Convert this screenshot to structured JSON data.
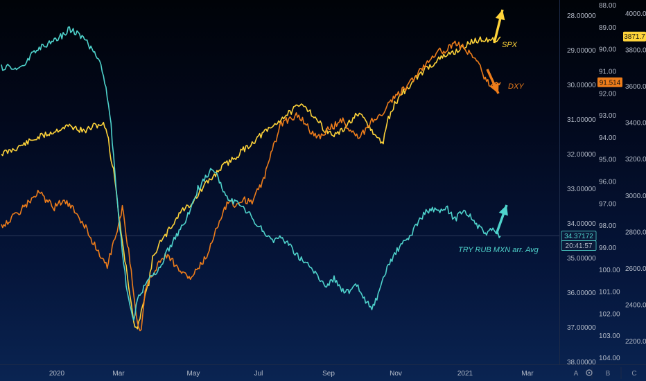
{
  "chart_data": {
    "type": "line",
    "title": "",
    "time_axis": {
      "ticks": [
        "2020",
        "Mar",
        "May",
        "Jul",
        "Sep",
        "Nov",
        "2021",
        "Mar"
      ]
    },
    "scale_left": {
      "inverted": true,
      "range": [
        27.6,
        38.1
      ],
      "ticks": [
        "28.00000",
        "29.00000",
        "30.00000",
        "31.00000",
        "32.00000",
        "33.00000",
        "34.00000",
        "35.00000",
        "36.00000",
        "37.00000",
        "38.00000"
      ],
      "tick_values": [
        28,
        29,
        30,
        31,
        32,
        33,
        34,
        35,
        36,
        37,
        38
      ]
    },
    "scale_mid": {
      "inverted": true,
      "range": [
        87.9,
        104.2
      ],
      "ticks": [
        "88.00",
        "89.00",
        "90.00",
        "91.00",
        "92.00",
        "93.00",
        "94.00",
        "95.00",
        "96.00",
        "97.00",
        "98.00",
        "99.00",
        "100.00",
        "101.00",
        "102.00",
        "103.00",
        "104.00"
      ],
      "tick_values": [
        88,
        89,
        90,
        91,
        92,
        93,
        94,
        95,
        96,
        97,
        98,
        99,
        100,
        101,
        102,
        103,
        104
      ]
    },
    "scale_right": {
      "inverted": false,
      "range": [
        2100,
        4050
      ],
      "ticks": [
        "4000.0",
        "3800.0",
        "3600.0",
        "3400.0",
        "3200.0",
        "3000.0",
        "2800.0",
        "2600.0",
        "2400.0",
        "2200.0"
      ],
      "tick_values": [
        4000,
        3800,
        3600,
        3400,
        3200,
        3000,
        2800,
        2600,
        2400,
        2200
      ]
    },
    "series": [
      {
        "name": "SPX",
        "color": "#ffd43a",
        "scale": "right",
        "points": [
          [
            0,
            3230
          ],
          [
            2,
            3240
          ],
          [
            4,
            3260
          ],
          [
            6,
            3280
          ],
          [
            8,
            3300
          ],
          [
            10,
            3320
          ],
          [
            12,
            3335
          ],
          [
            14,
            3350
          ],
          [
            16,
            3370
          ],
          [
            18,
            3380
          ],
          [
            20,
            3365
          ],
          [
            22,
            3350
          ],
          [
            24,
            3375
          ],
          [
            26,
            3390
          ],
          [
            27,
            3386
          ],
          [
            28,
            3350
          ],
          [
            29,
            3200
          ],
          [
            30,
            3100
          ],
          [
            31,
            2900
          ],
          [
            32,
            2750
          ],
          [
            33,
            2600
          ],
          [
            34,
            2450
          ],
          [
            35,
            2300
          ],
          [
            36,
            2250
          ],
          [
            37,
            2380
          ],
          [
            38,
            2450
          ],
          [
            39,
            2520
          ],
          [
            40,
            2650
          ],
          [
            41,
            2700
          ],
          [
            42,
            2740
          ],
          [
            43,
            2760
          ],
          [
            44,
            2800
          ],
          [
            45,
            2830
          ],
          [
            46,
            2860
          ],
          [
            47,
            2900
          ],
          [
            48,
            2920
          ],
          [
            50,
            2950
          ],
          [
            52,
            3000
          ],
          [
            54,
            3060
          ],
          [
            56,
            3100
          ],
          [
            58,
            3150
          ],
          [
            60,
            3180
          ],
          [
            62,
            3210
          ],
          [
            64,
            3250
          ],
          [
            66,
            3280
          ],
          [
            68,
            3320
          ],
          [
            70,
            3350
          ],
          [
            72,
            3380
          ],
          [
            74,
            3420
          ],
          [
            76,
            3450
          ],
          [
            78,
            3480
          ],
          [
            80,
            3500
          ],
          [
            82,
            3450
          ],
          [
            84,
            3400
          ],
          [
            86,
            3350
          ],
          [
            88,
            3330
          ],
          [
            90,
            3350
          ],
          [
            92,
            3400
          ],
          [
            94,
            3440
          ],
          [
            96,
            3420
          ],
          [
            98,
            3350
          ],
          [
            100,
            3300
          ],
          [
            101,
            3290
          ],
          [
            102,
            3400
          ],
          [
            104,
            3500
          ],
          [
            106,
            3560
          ],
          [
            108,
            3600
          ],
          [
            110,
            3650
          ],
          [
            112,
            3690
          ],
          [
            114,
            3720
          ],
          [
            116,
            3750
          ],
          [
            118,
            3770
          ],
          [
            120,
            3790
          ],
          [
            122,
            3810
          ],
          [
            124,
            3840
          ],
          [
            126,
            3850
          ],
          [
            128,
            3860
          ],
          [
            130,
            3850
          ],
          [
            132,
            3870
          ]
        ]
      },
      {
        "name": "DXY",
        "color": "#ee7d1b",
        "scale": "mid",
        "points": [
          [
            0,
            98.0
          ],
          [
            2,
            97.8
          ],
          [
            4,
            97.5
          ],
          [
            6,
            97.2
          ],
          [
            8,
            96.8
          ],
          [
            10,
            96.5
          ],
          [
            12,
            96.9
          ],
          [
            14,
            97.2
          ],
          [
            16,
            96.9
          ],
          [
            18,
            97.1
          ],
          [
            20,
            97.5
          ],
          [
            22,
            98.0
          ],
          [
            24,
            98.7
          ],
          [
            26,
            99.3
          ],
          [
            28,
            99.8
          ],
          [
            30,
            98.6
          ],
          [
            32,
            97.2
          ],
          [
            34,
            99.6
          ],
          [
            35,
            101.0
          ],
          [
            36,
            102.5
          ],
          [
            37,
            102.8
          ],
          [
            38,
            101.0
          ],
          [
            40,
            100.2
          ],
          [
            42,
            99.6
          ],
          [
            44,
            99.3
          ],
          [
            46,
            99.8
          ],
          [
            48,
            100.2
          ],
          [
            50,
            100.4
          ],
          [
            52,
            100.0
          ],
          [
            54,
            99.5
          ],
          [
            56,
            98.6
          ],
          [
            58,
            97.6
          ],
          [
            60,
            96.9
          ],
          [
            62,
            97.1
          ],
          [
            64,
            96.8
          ],
          [
            66,
            97.0
          ],
          [
            68,
            96.4
          ],
          [
            70,
            95.6
          ],
          [
            72,
            94.4
          ],
          [
            74,
            93.4
          ],
          [
            76,
            93.2
          ],
          [
            78,
            93.0
          ],
          [
            80,
            93.3
          ],
          [
            82,
            93.8
          ],
          [
            84,
            94.0
          ],
          [
            86,
            93.7
          ],
          [
            88,
            93.5
          ],
          [
            90,
            93.2
          ],
          [
            92,
            93.6
          ],
          [
            94,
            94.0
          ],
          [
            96,
            93.8
          ],
          [
            98,
            93.2
          ],
          [
            100,
            93.1
          ],
          [
            102,
            92.6
          ],
          [
            104,
            92.2
          ],
          [
            106,
            91.9
          ],
          [
            108,
            91.6
          ],
          [
            110,
            91.1
          ],
          [
            112,
            90.7
          ],
          [
            114,
            90.3
          ],
          [
            116,
            90.1
          ],
          [
            118,
            90.0
          ],
          [
            120,
            89.8
          ],
          [
            122,
            89.9
          ],
          [
            124,
            90.2
          ],
          [
            126,
            90.6
          ],
          [
            128,
            91.4
          ],
          [
            130,
            91.7
          ],
          [
            132,
            91.514
          ]
        ]
      },
      {
        "name": "TRY RUB MXN arr. Avg",
        "color": "#4fd3cc",
        "scale": "left",
        "points": [
          [
            0,
            29.5
          ],
          [
            2,
            29.5
          ],
          [
            4,
            29.55
          ],
          [
            6,
            29.45
          ],
          [
            8,
            29.1
          ],
          [
            10,
            28.95
          ],
          [
            12,
            28.85
          ],
          [
            14,
            28.7
          ],
          [
            16,
            28.6
          ],
          [
            18,
            28.4
          ],
          [
            20,
            28.5
          ],
          [
            22,
            28.7
          ],
          [
            24,
            29.0
          ],
          [
            26,
            29.4
          ],
          [
            27,
            29.7
          ],
          [
            28,
            30.3
          ],
          [
            29,
            31.2
          ],
          [
            30,
            32.5
          ],
          [
            31,
            33.8
          ],
          [
            32,
            34.8
          ],
          [
            33,
            35.8
          ],
          [
            34,
            36.4
          ],
          [
            35,
            36.8
          ],
          [
            36,
            36.2
          ],
          [
            37,
            36.0
          ],
          [
            38,
            35.8
          ],
          [
            40,
            35.5
          ],
          [
            42,
            35.3
          ],
          [
            44,
            34.8
          ],
          [
            46,
            34.4
          ],
          [
            48,
            34.1
          ],
          [
            50,
            33.6
          ],
          [
            52,
            33.0
          ],
          [
            54,
            32.7
          ],
          [
            56,
            32.4
          ],
          [
            58,
            32.9
          ],
          [
            60,
            33.3
          ],
          [
            62,
            33.4
          ],
          [
            64,
            33.6
          ],
          [
            66,
            33.8
          ],
          [
            68,
            34.1
          ],
          [
            70,
            34.3
          ],
          [
            72,
            34.5
          ],
          [
            74,
            34.4
          ],
          [
            76,
            34.6
          ],
          [
            78,
            34.9
          ],
          [
            80,
            35.1
          ],
          [
            82,
            35.3
          ],
          [
            84,
            35.6
          ],
          [
            86,
            35.8
          ],
          [
            88,
            35.6
          ],
          [
            90,
            35.9
          ],
          [
            92,
            36.0
          ],
          [
            94,
            35.8
          ],
          [
            96,
            36.2
          ],
          [
            98,
            36.5
          ],
          [
            100,
            36.0
          ],
          [
            102,
            35.3
          ],
          [
            104,
            34.9
          ],
          [
            106,
            34.6
          ],
          [
            108,
            34.4
          ],
          [
            110,
            34.0
          ],
          [
            112,
            33.7
          ],
          [
            114,
            33.6
          ],
          [
            116,
            33.7
          ],
          [
            118,
            33.6
          ],
          [
            120,
            33.9
          ],
          [
            122,
            33.6
          ],
          [
            124,
            33.8
          ],
          [
            126,
            34.1
          ],
          [
            128,
            34.3
          ],
          [
            130,
            34.2
          ],
          [
            132,
            34.37172
          ]
        ]
      }
    ],
    "price_tags": [
      {
        "label": "3871.7",
        "bg": "#ffd43a",
        "fg": "#111111",
        "scale": "right",
        "value": 3871.7
      },
      {
        "label": "91.514",
        "bg": "#ee7d1b",
        "fg": "#111111",
        "scale": "mid",
        "value": 91.514
      },
      {
        "label": "34.37172",
        "bg": "#0b1a3a",
        "fg": "#4fd3cc",
        "scale": "left",
        "value": 34.37172,
        "outline": "#4fd3cc"
      },
      {
        "label": "20:41:57",
        "bg": "#0b1a3a",
        "fg": "#b5bcc9",
        "scale": "left",
        "value": 34.6,
        "outline": "#4fd3cc"
      }
    ],
    "annotations": [
      {
        "text": "SPX",
        "color": "#ffd43a"
      },
      {
        "text": "DXY",
        "color": "#ee7d1b"
      },
      {
        "text": "TRY RUB MXN arr. Avg",
        "color": "#4fd3cc"
      }
    ],
    "crosshair_left_value": 34.37172
  },
  "scale_buttons": [
    "A",
    "B",
    "C"
  ],
  "icons": [
    "gear-icon"
  ]
}
